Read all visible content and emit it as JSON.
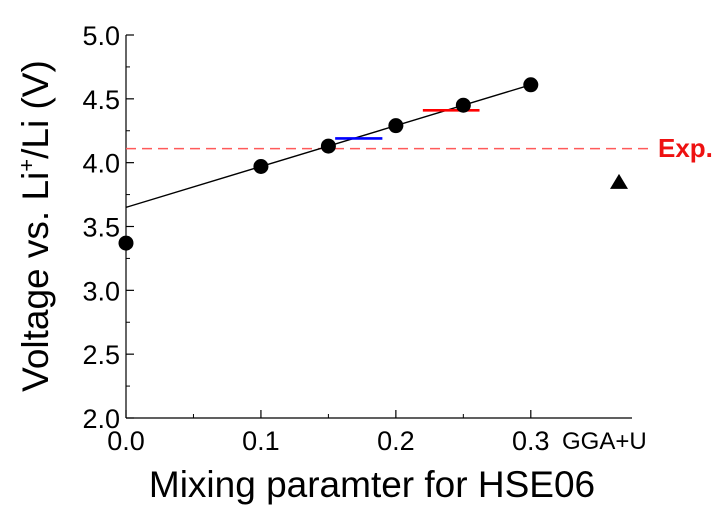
{
  "chart_data": {
    "type": "scatter",
    "xlabel": "Mixing paramter for HSE06",
    "ylabel_main": "Voltage vs. Li",
    "ylabel_sup": "+",
    "ylabel_tail": "/Li (V)",
    "xlim": [
      0.0,
      0.375
    ],
    "ylim": [
      2.0,
      5.0
    ],
    "x_ticks": [
      {
        "value": 0.0,
        "label": "0.0"
      },
      {
        "value": 0.1,
        "label": "0.1"
      },
      {
        "value": 0.2,
        "label": "0.2"
      },
      {
        "value": 0.3,
        "label": "0.3"
      }
    ],
    "y_ticks": [
      {
        "value": 2.0,
        "label": "2.0"
      },
      {
        "value": 2.5,
        "label": "2.5"
      },
      {
        "value": 3.0,
        "label": "3.0"
      },
      {
        "value": 3.5,
        "label": "3.5"
      },
      {
        "value": 4.0,
        "label": "4.0"
      },
      {
        "value": 4.5,
        "label": "4.5"
      },
      {
        "value": 5.0,
        "label": "5.0"
      }
    ],
    "points": [
      {
        "x": 0.0,
        "y": 3.37
      },
      {
        "x": 0.1,
        "y": 3.97
      },
      {
        "x": 0.15,
        "y": 4.13
      },
      {
        "x": 0.2,
        "y": 4.29
      },
      {
        "x": 0.25,
        "y": 4.45
      },
      {
        "x": 0.3,
        "y": 4.61
      }
    ],
    "point_color": "#000000",
    "fit_line": {
      "intercept": 3.65,
      "slope": 3.2,
      "x_range": [
        0.0,
        0.3
      ],
      "color": "#000000"
    },
    "markers": [
      {
        "x_range": [
          0.155,
          0.19
        ],
        "y": 4.19,
        "color": "#0000ff"
      },
      {
        "x_range": [
          0.22,
          0.262
        ],
        "y": 4.41,
        "color": "#ff0000"
      }
    ],
    "reference_line": {
      "y": 4.11,
      "label": "Exp.",
      "color": "#ff5a5a",
      "label_color": "#ee1111"
    },
    "extra_point": {
      "label": "GGA+U",
      "y": 3.85,
      "marker": "triangle",
      "color": "#000000"
    }
  }
}
